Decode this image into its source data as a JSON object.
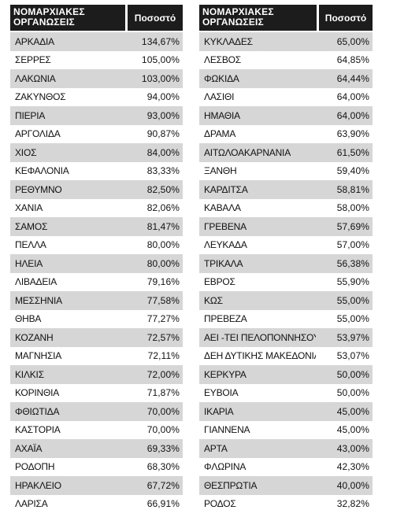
{
  "headers": {
    "col1": "ΝΟΜΑΡΧΙΑΚΕΣ ΟΡΓΑΝΩΣΕΙΣ",
    "col2": "Ποσοστό"
  },
  "left_rows": [
    {
      "name": "ΑΡΚΑΔΙΑ",
      "value": "134,67%"
    },
    {
      "name": "ΣΕΡΡΕΣ",
      "value": "105,00%"
    },
    {
      "name": "ΛΑΚΩΝΙΑ",
      "value": "103,00%"
    },
    {
      "name": "ΖΑΚΥΝΘΟΣ",
      "value": "94,00%"
    },
    {
      "name": "ΠΙΕΡΙΑ",
      "value": "93,00%"
    },
    {
      "name": "ΑΡΓΟΛΙΔΑ",
      "value": "90,87%"
    },
    {
      "name": "ΧΙΟΣ",
      "value": "84,00%"
    },
    {
      "name": "ΚΕΦΑΛΟΝΙΑ",
      "value": "83,33%"
    },
    {
      "name": "ΡΕΘΥΜΝΟ",
      "value": "82,50%"
    },
    {
      "name": "ΧΑΝΙΑ",
      "value": "82,06%"
    },
    {
      "name": "ΣΑΜΟΣ",
      "value": "81,47%"
    },
    {
      "name": "ΠΕΛΛΑ",
      "value": "80,00%"
    },
    {
      "name": "ΗΛΕΙΑ",
      "value": "80,00%"
    },
    {
      "name": "ΛΙΒΑΔΕΙΑ",
      "value": "79,16%"
    },
    {
      "name": "ΜΕΣΣΗΝΙΑ",
      "value": "77,58%"
    },
    {
      "name": "ΘΗΒΑ",
      "value": "77,27%"
    },
    {
      "name": "ΚΟΖΑΝΗ",
      "value": "72,57%"
    },
    {
      "name": "ΜΑΓΝΗΣΙΑ",
      "value": "72,11%"
    },
    {
      "name": "ΚΙΛΚΙΣ",
      "value": "72,00%"
    },
    {
      "name": "ΚΟΡΙΝΘΙΑ",
      "value": "71,87%"
    },
    {
      "name": "ΦΘΙΩΤΙΔΑ",
      "value": "70,00%"
    },
    {
      "name": "ΚΑΣΤΟΡΙΑ",
      "value": "70,00%"
    },
    {
      "name": "ΑΧΑΪΑ",
      "value": "69,33%"
    },
    {
      "name": "ΡΟΔΟΠΗ",
      "value": "68,30%"
    },
    {
      "name": "ΗΡΑΚΛΕΙΟ",
      "value": "67,72%"
    },
    {
      "name": "ΛΑΡΙΣΑ",
      "value": "66,91%"
    }
  ],
  "right_rows": [
    {
      "name": "ΚΥΚΛΑΔΕΣ",
      "value": "65,00%"
    },
    {
      "name": "ΛΕΣΒΟΣ",
      "value": "64,85%"
    },
    {
      "name": "ΦΩΚΙΔΑ",
      "value": "64,44%"
    },
    {
      "name": "ΛΑΣΙΘΙ",
      "value": "64,00%"
    },
    {
      "name": "ΗΜΑΘΙΑ",
      "value": "64,00%"
    },
    {
      "name": "ΔΡΑΜΑ",
      "value": "63,90%"
    },
    {
      "name": "ΑΙΤΩΛΟΑΚΑΡΝΑΝΙΑ",
      "value": "61,50%"
    },
    {
      "name": "ΞΑΝΘΗ",
      "value": "59,40%"
    },
    {
      "name": "ΚΑΡΔΙΤΣΑ",
      "value": "58,81%"
    },
    {
      "name": "ΚΑΒΑΛΑ",
      "value": "58,00%"
    },
    {
      "name": "ΓΡΕΒΕΝΑ",
      "value": "57,69%"
    },
    {
      "name": "ΛΕΥΚΑΔΑ",
      "value": "57,00%"
    },
    {
      "name": "ΤΡΙΚΑΛΑ",
      "value": "56,38%"
    },
    {
      "name": "ΕΒΡΟΣ",
      "value": "55,90%"
    },
    {
      "name": "ΚΩΣ",
      "value": "55,00%"
    },
    {
      "name": "ΠΡΕΒΕΖΑ",
      "value": "55,00%"
    },
    {
      "name": "ΑΕΙ -ΤΕΙ ΠΕΛΟΠΟΝΝΗΣΟΥ",
      "value": "53,97%"
    },
    {
      "name": "ΔΕΗ ΔΥΤΙΚΗΣ ΜΑΚΕΔΟΝΙΑΣ",
      "value": "53,07%"
    },
    {
      "name": "ΚΕΡΚΥΡΑ",
      "value": "50,00%"
    },
    {
      "name": "ΕΥΒΟΙΑ",
      "value": "50,00%"
    },
    {
      "name": "ΙΚΑΡΙΑ",
      "value": "45,00%"
    },
    {
      "name": "ΓΙΑΝΝΕΝΑ",
      "value": "45,00%"
    },
    {
      "name": "ΑΡΤΑ",
      "value": "43,00%"
    },
    {
      "name": "ΦΛΩΡΙΝΑ",
      "value": "42,30%"
    },
    {
      "name": "ΘΕΣΠΡΩΤΙΑ",
      "value": "40,00%"
    },
    {
      "name": "ΡΟΔΟΣ",
      "value": "32,82%"
    }
  ]
}
